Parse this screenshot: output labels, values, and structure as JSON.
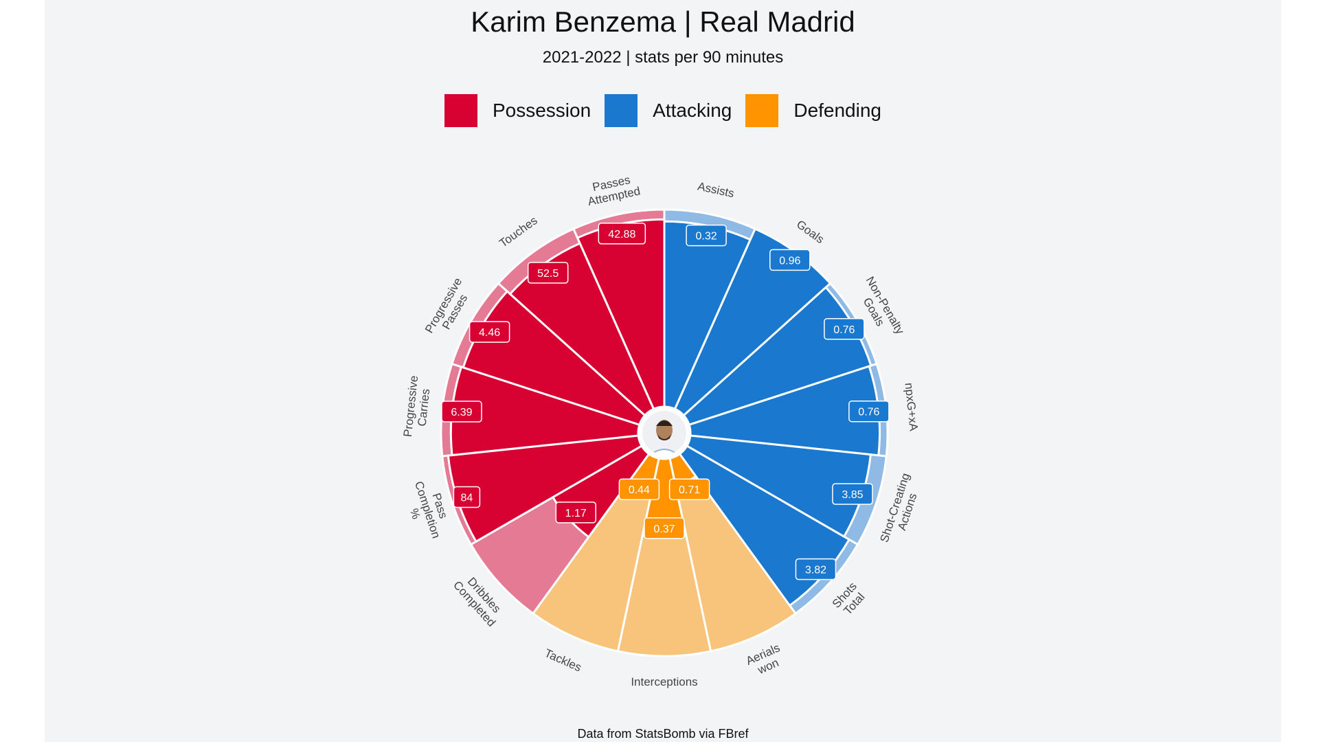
{
  "title": "Karim Benzema | Real Madrid",
  "subtitle": "2021-2022 | stats per 90 minutes",
  "source": "Data from StatsBomb via FBref",
  "legend": [
    {
      "label": "Possession",
      "color": "#d70232"
    },
    {
      "label": "Attacking",
      "color": "#1a78cf"
    },
    {
      "label": "Defending",
      "color": "#ff9300"
    }
  ],
  "colors": {
    "Possession": {
      "slice": "#d70232",
      "background": "#e47a93"
    },
    "Attacking": {
      "slice": "#1a78cf",
      "background": "#8fbae5"
    },
    "Defending": {
      "slice": "#ff9300",
      "background": "#f8c47c"
    }
  },
  "avatar_icon": "player-face-icon",
  "chart_data": {
    "type": "radar",
    "percentile_range": [
      0,
      100
    ],
    "params": [
      {
        "name": "Assists",
        "label_lines": [
          "Assists"
        ],
        "group": "Attacking",
        "value": "0.32",
        "percentile": 94
      },
      {
        "name": "Goals",
        "label_lines": [
          "Goals"
        ],
        "group": "Attacking",
        "value": "0.96",
        "percentile": 100
      },
      {
        "name": "Non-Penalty Goals",
        "label_lines": [
          "Non-Penalty",
          "Goals"
        ],
        "group": "Attacking",
        "value": "0.76",
        "percentile": 97
      },
      {
        "name": "npxG+xA",
        "label_lines": [
          "npxG+xA"
        ],
        "group": "Attacking",
        "value": "0.76",
        "percentile": 96
      },
      {
        "name": "Shot-Creating Actions",
        "label_lines": [
          "Shot-Creating",
          "Actions"
        ],
        "group": "Attacking",
        "value": "3.85",
        "percentile": 92
      },
      {
        "name": "Shots Total",
        "label_lines": [
          "Shots",
          "Total"
        ],
        "group": "Attacking",
        "value": "3.82",
        "percentile": 95
      },
      {
        "name": "Aerials won",
        "label_lines": [
          "Aerials",
          "won"
        ],
        "group": "Defending",
        "value": "0.71",
        "percentile": 14
      },
      {
        "name": "Interceptions",
        "label_lines": [
          "Interceptions"
        ],
        "group": "Defending",
        "value": "0.37",
        "percentile": 40
      },
      {
        "name": "Tackles",
        "label_lines": [
          "Tackles"
        ],
        "group": "Defending",
        "value": "0.44",
        "percentile": 18
      },
      {
        "name": "Dribbles Completed",
        "label_lines": [
          "Dribbles",
          "Completed"
        ],
        "group": "Possession",
        "value": "1.17",
        "percentile": 52
      },
      {
        "name": "Pass Completion %",
        "label_lines": [
          "Pass",
          "Completion",
          "%"
        ],
        "group": "Possession",
        "value": "84",
        "percentile": 97
      },
      {
        "name": "Progressive Carries",
        "label_lines": [
          "Progressive",
          "Carries"
        ],
        "group": "Possession",
        "value": "6.39",
        "percentile": 95
      },
      {
        "name": "Progressive Passes",
        "label_lines": [
          "Progressive",
          "Passes"
        ],
        "group": "Possession",
        "value": "4.46",
        "percentile": 94
      },
      {
        "name": "Touches",
        "label_lines": [
          "Touches"
        ],
        "group": "Possession",
        "value": "52.5",
        "percentile": 92
      },
      {
        "name": "Passes Attempted",
        "label_lines": [
          "Passes",
          "Attempted"
        ],
        "group": "Possession",
        "value": "42.88",
        "percentile": 95
      }
    ]
  }
}
